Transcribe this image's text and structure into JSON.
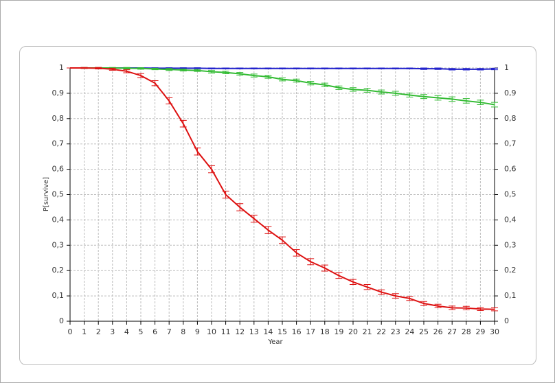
{
  "chart_data": {
    "type": "line",
    "x_label": "Year",
    "y_label": "P[survive]",
    "x": [
      0,
      1,
      2,
      3,
      4,
      5,
      6,
      7,
      8,
      9,
      10,
      11,
      12,
      13,
      14,
      15,
      16,
      17,
      18,
      19,
      20,
      21,
      22,
      23,
      24,
      25,
      26,
      27,
      28,
      29,
      30
    ],
    "xlim": [
      0,
      30
    ],
    "xticks": [
      0,
      1,
      2,
      3,
      4,
      5,
      6,
      7,
      8,
      9,
      10,
      11,
      12,
      13,
      14,
      15,
      16,
      17,
      18,
      19,
      20,
      21,
      22,
      23,
      24,
      25,
      26,
      27,
      28,
      29,
      30
    ],
    "ylim": [
      0,
      1
    ],
    "yticks": [
      0,
      {
        "value": 0.1,
        "label": "0,1"
      },
      {
        "value": 0.2,
        "label": "0,2"
      },
      {
        "value": 0.3,
        "label": "0,3"
      },
      {
        "value": 0.4,
        "label": "0,4"
      },
      {
        "value": 0.5,
        "label": "0,5"
      },
      {
        "value": 0.6,
        "label": "0,6"
      },
      {
        "value": 0.7,
        "label": "0,7"
      },
      {
        "value": 0.8,
        "label": "0,8"
      },
      {
        "value": 0.9,
        "label": "0,9"
      },
      1
    ],
    "grid": true,
    "mirror_y_axis": true,
    "series": [
      {
        "color": "#2222cc",
        "values": [
          1,
          1,
          1,
          1,
          1,
          1,
          0.999,
          0.999,
          0.999,
          0.999,
          0.998,
          0.998,
          0.998,
          0.998,
          0.998,
          0.998,
          0.998,
          0.998,
          0.998,
          0.998,
          0.998,
          0.998,
          0.998,
          0.998,
          0.998,
          0.997,
          0.997,
          0.995,
          0.995,
          0.995,
          0.996
        ],
        "errors": [
          0,
          0,
          0,
          0,
          0,
          0,
          0.002,
          0.002,
          0.002,
          0.002,
          0.002,
          0.002,
          0.002,
          0.002,
          0.002,
          0.002,
          0.002,
          0.002,
          0.002,
          0.002,
          0.002,
          0.002,
          0.002,
          0.002,
          0.002,
          0.003,
          0.003,
          0.003,
          0.003,
          0.003,
          0.003
        ]
      },
      {
        "color": "#33bb33",
        "values": [
          1,
          1,
          1,
          1,
          0.999,
          0.998,
          0.996,
          0.994,
          0.992,
          0.99,
          0.985,
          0.982,
          0.977,
          0.97,
          0.965,
          0.955,
          0.95,
          0.94,
          0.933,
          0.922,
          0.915,
          0.912,
          0.905,
          0.9,
          0.893,
          0.887,
          0.882,
          0.877,
          0.87,
          0.864,
          0.855
        ],
        "errors": [
          0,
          0.002,
          0.002,
          0.002,
          0.003,
          0.003,
          0.003,
          0.004,
          0.004,
          0.004,
          0.005,
          0.005,
          0.005,
          0.006,
          0.006,
          0.006,
          0.006,
          0.007,
          0.007,
          0.007,
          0.007,
          0.008,
          0.008,
          0.008,
          0.008,
          0.008,
          0.009,
          0.009,
          0.009,
          0.009,
          0.009
        ]
      },
      {
        "color": "#dd1111",
        "values": [
          1,
          1,
          0.999,
          0.995,
          0.987,
          0.97,
          0.94,
          0.87,
          0.78,
          0.67,
          0.6,
          0.5,
          0.45,
          0.405,
          0.36,
          0.32,
          0.27,
          0.235,
          0.21,
          0.18,
          0.155,
          0.135,
          0.115,
          0.1,
          0.09,
          0.07,
          0.06,
          0.053,
          0.052,
          0.048,
          0.047
        ],
        "errors": [
          0,
          0.002,
          0.003,
          0.004,
          0.006,
          0.008,
          0.01,
          0.012,
          0.013,
          0.014,
          0.014,
          0.014,
          0.014,
          0.014,
          0.014,
          0.013,
          0.013,
          0.012,
          0.012,
          0.011,
          0.01,
          0.01,
          0.009,
          0.009,
          0.008,
          0.008,
          0.007,
          0.007,
          0.007,
          0.006,
          0.006
        ]
      }
    ]
  }
}
